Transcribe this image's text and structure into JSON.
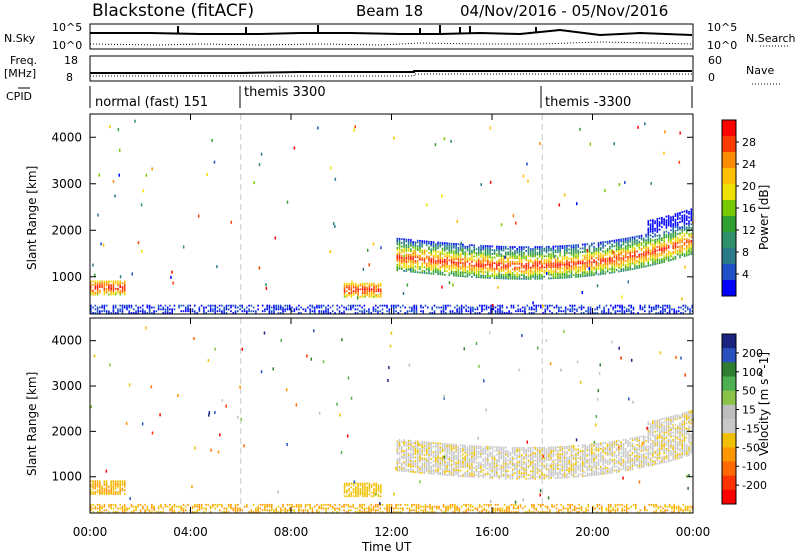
{
  "header": {
    "title": "Blackstone (fitACF)",
    "beam": "Beam 18",
    "date_range": "04/Nov/2016 - 05/Nov/2016"
  },
  "summary_panels": {
    "nsky_label": "N.Sky",
    "nsky_ticks": [
      "10^5",
      "10^0"
    ],
    "nsearch_label": "N.Search",
    "nsearch_ticks": [
      "10^5",
      "10^0"
    ],
    "freq_label": "Freq.",
    "freq_unit": "[MHz]",
    "freq_ticks": [
      "18",
      "8"
    ],
    "nave_label": "Nave",
    "nave_ticks": [
      "60",
      "0"
    ],
    "cpid_label": "CPID",
    "cpid_segments": [
      {
        "label": "normal (fast) 151",
        "start_hour": 0
      },
      {
        "label": "themis 3300",
        "start_hour": 6
      },
      {
        "label": "themis -3300",
        "start_hour": 18
      }
    ]
  },
  "chart_data": [
    {
      "type": "heatmap",
      "name": "power",
      "ylabel": "Slant Range [km]",
      "colorbar_label": "Power [dB]",
      "colorbar_ticks": [
        "28",
        "24",
        "20",
        "16",
        "12",
        "8",
        "4"
      ],
      "colorbar_colors": [
        "#ff0000",
        "#ff3c00",
        "#ff8c00",
        "#ffc000",
        "#f0e000",
        "#78c800",
        "#30a030",
        "#2f8f6a",
        "#2a7a8a",
        "#1c4fc8",
        "#0000ff"
      ],
      "yticks": [
        "4000",
        "3000",
        "2000",
        "1000"
      ],
      "ylim": [
        200,
        4500
      ],
      "xlim_hours": [
        0,
        24
      ],
      "scatter_regions": [
        {
          "t0": 0.0,
          "t1": 1.4,
          "r0": 600,
          "r1": 900,
          "level": "high"
        },
        {
          "t0": 10.1,
          "t1": 11.6,
          "r0": 550,
          "r1": 850,
          "level": "high"
        },
        {
          "t0": 12.2,
          "t1": 23.9,
          "r0": 800,
          "r1": 2100,
          "level": "band"
        },
        {
          "t0": 0.0,
          "t1": 24.0,
          "r0": 200,
          "r1": 400,
          "level": "low"
        }
      ]
    },
    {
      "type": "heatmap",
      "name": "velocity",
      "ylabel": "Slant Range [km]",
      "colorbar_label": "Velocity [m s^-1]",
      "colorbar_ticks": [
        "200",
        "100",
        "50",
        "15",
        "-15",
        "-50",
        "-100",
        "-200"
      ],
      "colorbar_colors": [
        "#1a237e",
        "#2a52be",
        "#2e7d32",
        "#4caf50",
        "#8bc34a",
        "#bdbdbd",
        "#c8c8c8",
        "#f0c000",
        "#ff9800",
        "#ff6a00",
        "#ff3300",
        "#ff0000"
      ],
      "yticks": [
        "4000",
        "3000",
        "2000",
        "1000"
      ],
      "ylim": [
        200,
        4500
      ],
      "xlim_hours": [
        0,
        24
      ],
      "xticks": [
        "00:00",
        "04:00",
        "08:00",
        "12:00",
        "16:00",
        "20:00",
        "00:00"
      ],
      "xlabel": "Time UT"
    }
  ]
}
